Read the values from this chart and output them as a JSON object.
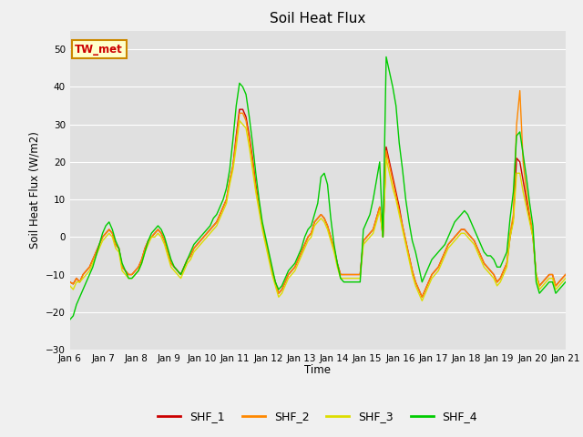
{
  "title": "Soil Heat Flux",
  "ylabel": "Soil Heat Flux (W/m2)",
  "xlabel": "Time",
  "ylim": [
    -30,
    55
  ],
  "yticks": [
    -30,
    -20,
    -10,
    0,
    10,
    20,
    30,
    40,
    50
  ],
  "fig_facecolor": "#f0f0f0",
  "ax_facecolor": "#e0e0e0",
  "legend_label": "TW_met",
  "series_colors": [
    "#cc0000",
    "#ff8800",
    "#dddd00",
    "#00cc00"
  ],
  "series_names": [
    "SHF_1",
    "SHF_2",
    "SHF_3",
    "SHF_4"
  ],
  "xtick_labels": [
    "Jan 6",
    "Jan 7",
    "Jan 8",
    "Jan 9",
    "Jan 10",
    "Jan 11",
    "Jan 12",
    "Jan 13",
    "Jan 14",
    "Jan 15",
    "Jan 16",
    "Jan 17",
    "Jan 18",
    "Jan 19",
    "Jan 20",
    "Jan 21"
  ],
  "shf1": [
    -12,
    -12.5,
    -11,
    -12,
    -10,
    -9,
    -8,
    -6,
    -4,
    -2,
    0,
    1,
    2,
    1,
    -2,
    -3,
    -8,
    -9,
    -10,
    -10,
    -9,
    -8,
    -6,
    -3,
    -1,
    0,
    1,
    2,
    1,
    -1,
    -4,
    -7,
    -8,
    -9,
    -10,
    -8,
    -6,
    -5,
    -3,
    -2,
    -1,
    0,
    1,
    2,
    3,
    4,
    6,
    8,
    10,
    15,
    19,
    27,
    34,
    34,
    32,
    27,
    21,
    14,
    8,
    3,
    -1,
    -5,
    -9,
    -12,
    -15,
    -14,
    -12,
    -10,
    -9,
    -8,
    -6,
    -4,
    -2,
    0,
    1,
    4,
    5,
    6,
    5,
    3,
    0,
    -3,
    -7,
    -10,
    -10,
    -10,
    -10,
    -10,
    -10,
    -10,
    -1,
    0,
    1,
    2,
    5,
    8,
    0,
    24,
    20,
    16,
    12,
    8,
    3,
    -1,
    -5,
    -9,
    -12,
    -14,
    -16,
    -14,
    -12,
    -10,
    -9,
    -8,
    -6,
    -4,
    -2,
    -1,
    0,
    1,
    2,
    2,
    1,
    0,
    -1,
    -3,
    -5,
    -7,
    -8,
    -9,
    -10,
    -12,
    -11,
    -9,
    -7,
    0,
    5,
    21,
    20,
    15,
    10,
    5,
    0,
    -10,
    -13,
    -12,
    -11,
    -10,
    -10,
    -13,
    -12,
    -11,
    -10
  ],
  "shf2": [
    -12,
    -12.5,
    -11,
    -12,
    -10,
    -9,
    -8,
    -6,
    -4,
    -2,
    0,
    1,
    2,
    1,
    -2,
    -3,
    -8,
    -9,
    -10,
    -10,
    -9,
    -8,
    -6,
    -3,
    -1,
    0,
    1,
    2,
    1,
    -1,
    -4,
    -7,
    -8,
    -9,
    -10,
    -8,
    -6,
    -5,
    -3,
    -2,
    -1,
    0,
    1,
    2,
    3,
    4,
    6,
    8,
    10,
    15,
    19,
    26,
    33,
    33,
    31,
    26,
    20,
    13,
    8,
    3,
    -1,
    -5,
    -9,
    -12,
    -15,
    -14,
    -12,
    -10,
    -9,
    -8,
    -6,
    -4,
    -2,
    0,
    1,
    4,
    5,
    6,
    5,
    3,
    0,
    -3,
    -7,
    -10,
    -10,
    -10,
    -10,
    -10,
    -10,
    -10,
    -1,
    0,
    1,
    2,
    5,
    8,
    0,
    23,
    19,
    15,
    11,
    7,
    3,
    -1,
    -5,
    -9,
    -12,
    -14,
    -16,
    -14,
    -12,
    -10,
    -9,
    -8,
    -6,
    -4,
    -2,
    -1,
    0,
    1,
    2,
    2,
    1,
    0,
    -1,
    -3,
    -5,
    -7,
    -8,
    -9,
    -10,
    -12,
    -11,
    -9,
    -7,
    1,
    6,
    30,
    39,
    20,
    12,
    6,
    1,
    -10,
    -13,
    -12,
    -11,
    -10,
    -10,
    -13,
    -12,
    -11,
    -10
  ],
  "shf3": [
    -13,
    -14,
    -12,
    -12,
    -11,
    -10,
    -9,
    -7,
    -5,
    -3,
    -1,
    0,
    1,
    0,
    -3,
    -4,
    -9,
    -10,
    -11,
    -11,
    -10,
    -9,
    -7,
    -4,
    -2,
    0,
    0,
    1,
    0,
    -2,
    -5,
    -8,
    -9,
    -10,
    -11,
    -9,
    -7,
    -6,
    -4,
    -3,
    -2,
    -1,
    0,
    1,
    2,
    3,
    5,
    7,
    9,
    14,
    18,
    24,
    31,
    30,
    29,
    24,
    18,
    12,
    7,
    2,
    -2,
    -6,
    -10,
    -13,
    -16,
    -15,
    -13,
    -11,
    -10,
    -9,
    -7,
    -5,
    -3,
    -1,
    0,
    3,
    4,
    5,
    4,
    2,
    -1,
    -4,
    -8,
    -11,
    -11,
    -11,
    -11,
    -11,
    -11,
    -11,
    -2,
    -1,
    0,
    1,
    4,
    7,
    0,
    21,
    17,
    13,
    10,
    6,
    2,
    -2,
    -6,
    -10,
    -13,
    -15,
    -17,
    -15,
    -13,
    -11,
    -10,
    -9,
    -7,
    -5,
    -3,
    -2,
    -1,
    0,
    1,
    1,
    0,
    -1,
    -2,
    -4,
    -6,
    -8,
    -9,
    -10,
    -11,
    -13,
    -12,
    -10,
    -8,
    0,
    4,
    17,
    17,
    12,
    8,
    4,
    0,
    -10,
    -14,
    -13,
    -12,
    -11,
    -11,
    -14,
    -13,
    -12,
    -11
  ],
  "shf4": [
    -22,
    -21,
    -18,
    -16,
    -14,
    -12,
    -10,
    -8,
    -5,
    -2,
    1,
    3,
    4,
    2,
    -1,
    -3,
    -7,
    -9,
    -11,
    -11,
    -10,
    -9,
    -7,
    -4,
    -1,
    1,
    2,
    3,
    2,
    0,
    -3,
    -6,
    -8,
    -9,
    -10,
    -8,
    -6,
    -4,
    -2,
    -1,
    0,
    1,
    2,
    3,
    5,
    6,
    8,
    10,
    13,
    18,
    26,
    35,
    41,
    40,
    38,
    32,
    25,
    17,
    10,
    4,
    0,
    -4,
    -8,
    -12,
    -14,
    -13,
    -11,
    -9,
    -8,
    -7,
    -5,
    -3,
    0,
    2,
    3,
    6,
    9,
    16,
    17,
    14,
    5,
    -2,
    -7,
    -11,
    -12,
    -12,
    -12,
    -12,
    -12,
    -12,
    2,
    4,
    6,
    10,
    15,
    20,
    0,
    48,
    44,
    40,
    35,
    25,
    18,
    10,
    4,
    -1,
    -4,
    -8,
    -12,
    -10,
    -8,
    -6,
    -5,
    -4,
    -3,
    -2,
    0,
    2,
    4,
    5,
    6,
    7,
    6,
    4,
    2,
    0,
    -2,
    -4,
    -5,
    -5,
    -6,
    -8,
    -8,
    -6,
    -4,
    5,
    12,
    27,
    28,
    22,
    16,
    9,
    3,
    -12,
    -15,
    -14,
    -13,
    -12,
    -12,
    -15,
    -14,
    -13,
    -12
  ]
}
